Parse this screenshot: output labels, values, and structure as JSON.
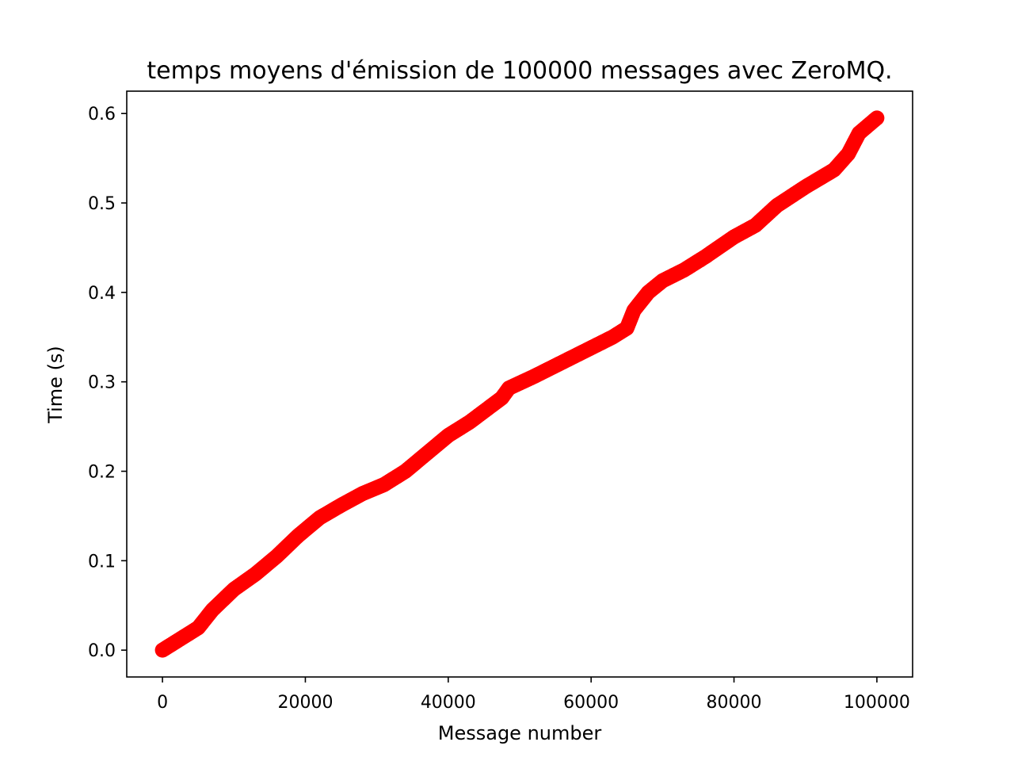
{
  "chart_data": {
    "type": "scatter",
    "title": "temps moyens d'émission de 100000 messages avec ZeroMQ.",
    "xlabel": "Message number",
    "ylabel": "Time (s)",
    "xlim": [
      -5000,
      105000
    ],
    "ylim": [
      -0.03,
      0.625
    ],
    "x_ticks": [
      0,
      20000,
      40000,
      60000,
      80000,
      100000
    ],
    "x_tick_labels": [
      "0",
      "20000",
      "40000",
      "60000",
      "80000",
      "100000"
    ],
    "y_ticks": [
      0.0,
      0.1,
      0.2,
      0.3,
      0.4,
      0.5,
      0.6
    ],
    "y_tick_labels": [
      "0.0",
      "0.1",
      "0.2",
      "0.3",
      "0.4",
      "0.5",
      "0.6"
    ],
    "grid": false,
    "legend": "none",
    "series": [
      {
        "color": "#ff0000",
        "x": [
          0,
          2000,
          5000,
          7000,
          10000,
          13000,
          16000,
          19000,
          22000,
          25000,
          28000,
          31000,
          34000,
          37000,
          40000,
          43000,
          46000,
          47500,
          48500,
          52000,
          56000,
          60000,
          63000,
          65000,
          66000,
          68000,
          70000,
          73000,
          76000,
          80000,
          83000,
          86000,
          90000,
          94000,
          96000,
          97500,
          100000
        ],
        "y": [
          0.0,
          0.01,
          0.025,
          0.045,
          0.068,
          0.085,
          0.105,
          0.128,
          0.148,
          0.162,
          0.175,
          0.185,
          0.2,
          0.22,
          0.24,
          0.255,
          0.273,
          0.282,
          0.293,
          0.306,
          0.322,
          0.338,
          0.35,
          0.36,
          0.38,
          0.4,
          0.413,
          0.425,
          0.44,
          0.462,
          0.475,
          0.497,
          0.518,
          0.537,
          0.555,
          0.578,
          0.595
        ]
      }
    ]
  }
}
